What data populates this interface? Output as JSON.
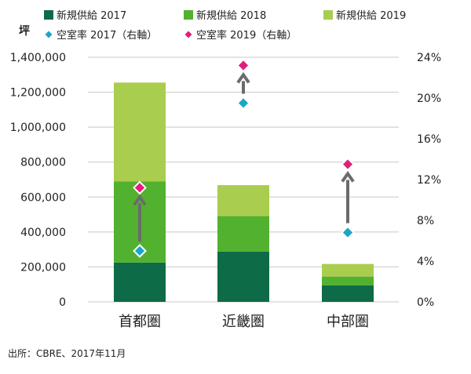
{
  "chart_data": {
    "type": "bar",
    "stacked": true,
    "y_unit_label": "坪",
    "categories": [
      "首都圏",
      "近畿圏",
      "中部圏"
    ],
    "series": [
      {
        "name": "新規供給 2017",
        "values": [
          225000,
          288000,
          95000
        ],
        "color": "#0e6b48"
      },
      {
        "name": "新規供給 2018",
        "values": [
          465000,
          203000,
          50000
        ],
        "color": "#52b12f"
      },
      {
        "name": "新規供給 2019",
        "values": [
          565000,
          177000,
          72000
        ],
        "color": "#a9cd4e"
      }
    ],
    "line_series": [
      {
        "name": "空室率 2017（右軸）",
        "values": [
          5.0,
          19.5,
          6.8
        ],
        "color": "#1aa6c8",
        "axis": "right"
      },
      {
        "name": "空室率 2019（右軸）",
        "values": [
          11.2,
          23.2,
          13.5
        ],
        "color": "#e01f7a",
        "axis": "right"
      }
    ],
    "y_axis": {
      "min": 0,
      "max": 1400000,
      "step": 200000,
      "ticks": [
        "0",
        "200,000",
        "400,000",
        "600,000",
        "800,000",
        "1,000,000",
        "1,200,000",
        "1,400,000"
      ]
    },
    "y2_axis": {
      "min": 0,
      "max": 24,
      "step": 4,
      "ticks": [
        "0%",
        "4%",
        "8%",
        "12%",
        "16%",
        "20%",
        "24%"
      ]
    },
    "arrows": "2017 → 2019 vacancy change",
    "arrow_color": "#6b6b6b",
    "grid": true,
    "legend_placement": "top",
    "source": "出所：CBRE、2017年11月"
  }
}
